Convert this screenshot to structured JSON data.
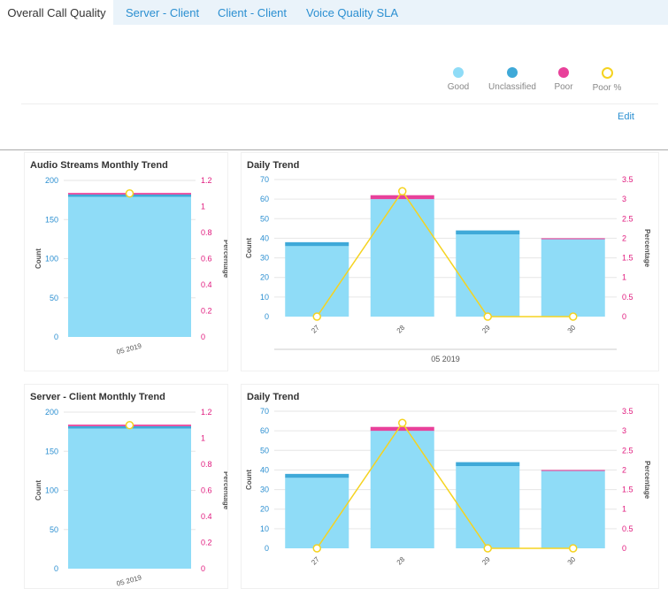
{
  "tabs": [
    {
      "label": "Overall Call Quality",
      "active": true
    },
    {
      "label": "Server - Client",
      "active": false
    },
    {
      "label": "Client - Client",
      "active": false
    },
    {
      "label": "Voice Quality SLA",
      "active": false
    }
  ],
  "legend": [
    {
      "label": "Good",
      "color": "#8fdcf7",
      "style": "dot"
    },
    {
      "label": "Unclassified",
      "color": "#3fa9d8",
      "style": "dot"
    },
    {
      "label": "Poor",
      "color": "#e8419a",
      "style": "dot"
    },
    {
      "label": "Poor %",
      "color": "#f5d320",
      "style": "ring"
    }
  ],
  "edit_label": "Edit",
  "colors": {
    "good": "#8fdcf7",
    "unclassified": "#3fa9d8",
    "poor": "#e8419a",
    "poor_pct": "#f5d320",
    "count_axis": "#2b8fd1",
    "pct_axis": "#e0197d"
  },
  "chart_data": [
    {
      "type": "bar",
      "title": "Audio Streams Monthly Trend",
      "categories": [
        "05 2019"
      ],
      "series": [
        {
          "name": "Good",
          "values": [
            179
          ]
        },
        {
          "name": "Unclassified",
          "values": [
            3
          ]
        },
        {
          "name": "Poor",
          "values": [
            2
          ]
        },
        {
          "name": "Poor %",
          "values": [
            1.1
          ],
          "axis": "right",
          "kind": "line"
        }
      ],
      "ylabel": "Count",
      "ylim": [
        0,
        200
      ],
      "yticks": [
        "0",
        "50",
        "100",
        "150",
        "200"
      ],
      "y2label": "Percentage",
      "y2lim": [
        0,
        1.2
      ],
      "y2ticks": [
        "0",
        "0.2",
        "0.4",
        "0.6",
        "0.8",
        "1",
        "1.2"
      ],
      "xlabel": ""
    },
    {
      "type": "bar",
      "title": "Daily Trend",
      "categories": [
        "27",
        "28",
        "29",
        "30"
      ],
      "series": [
        {
          "name": "Good",
          "values": [
            36,
            60,
            42,
            39.5
          ]
        },
        {
          "name": "Unclassified",
          "values": [
            2,
            0,
            2,
            0
          ]
        },
        {
          "name": "Poor",
          "values": [
            0,
            2,
            0,
            0.5
          ]
        },
        {
          "name": "Poor %",
          "values": [
            0,
            3.2,
            0,
            0
          ],
          "axis": "right",
          "kind": "line"
        }
      ],
      "ylabel": "Count",
      "ylim": [
        0,
        70
      ],
      "yticks": [
        "0",
        "10",
        "20",
        "30",
        "40",
        "50",
        "60",
        "70"
      ],
      "y2label": "Percentage",
      "y2lim": [
        0,
        3.5
      ],
      "y2ticks": [
        "0",
        "0.5",
        "1",
        "1.5",
        "2",
        "2.5",
        "3",
        "3.5"
      ],
      "xlabel": "05 2019"
    },
    {
      "type": "bar",
      "title": "Server - Client Monthly Trend",
      "categories": [
        "05 2019"
      ],
      "series": [
        {
          "name": "Good",
          "values": [
            179
          ]
        },
        {
          "name": "Unclassified",
          "values": [
            3
          ]
        },
        {
          "name": "Poor",
          "values": [
            2
          ]
        },
        {
          "name": "Poor %",
          "values": [
            1.1
          ],
          "axis": "right",
          "kind": "line"
        }
      ],
      "ylabel": "Count",
      "ylim": [
        0,
        200
      ],
      "yticks": [
        "0",
        "50",
        "100",
        "150",
        "200"
      ],
      "y2label": "Percentage",
      "y2lim": [
        0,
        1.2
      ],
      "y2ticks": [
        "0",
        "0.2",
        "0.4",
        "0.6",
        "0.8",
        "1",
        "1.2"
      ],
      "xlabel": ""
    },
    {
      "type": "bar",
      "title": "Daily Trend",
      "categories": [
        "27",
        "28",
        "29",
        "30"
      ],
      "series": [
        {
          "name": "Good",
          "values": [
            36,
            60,
            42,
            39.5
          ]
        },
        {
          "name": "Unclassified",
          "values": [
            2,
            0,
            2,
            0
          ]
        },
        {
          "name": "Poor",
          "values": [
            0,
            2,
            0,
            0.5
          ]
        },
        {
          "name": "Poor %",
          "values": [
            0,
            3.2,
            0,
            0
          ],
          "axis": "right",
          "kind": "line"
        }
      ],
      "ylabel": "Count",
      "ylim": [
        0,
        70
      ],
      "yticks": [
        "0",
        "10",
        "20",
        "30",
        "40",
        "50",
        "60",
        "70"
      ],
      "y2label": "Percentage",
      "y2lim": [
        0,
        3.5
      ],
      "y2ticks": [
        "0",
        "0.5",
        "1",
        "1.5",
        "2",
        "2.5",
        "3",
        "3.5"
      ],
      "xlabel": ""
    }
  ]
}
